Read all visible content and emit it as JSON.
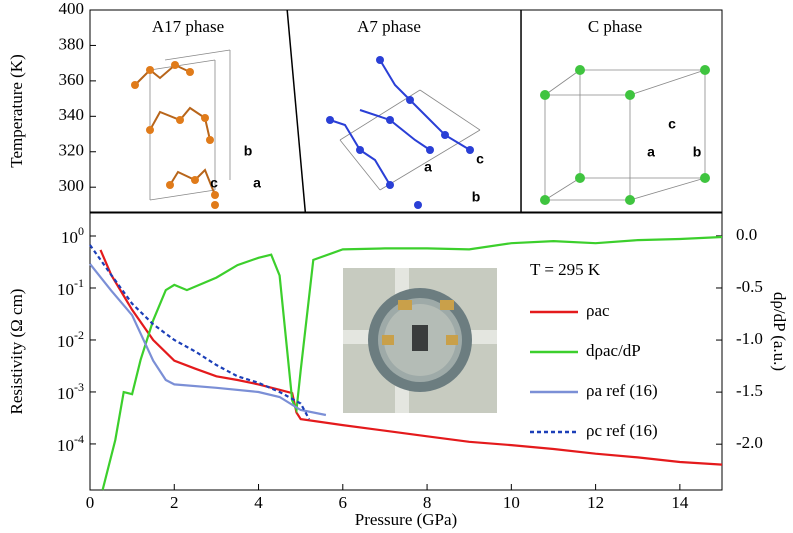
{
  "chart_data": [
    {
      "type": "phase-map",
      "ylabel": "Temperature (K)",
      "xlim": [
        0,
        15
      ],
      "ylim": [
        286,
        400
      ],
      "yticks": [
        300,
        320,
        340,
        360,
        380,
        400
      ],
      "boundaries": [
        [
          4.68,
          5.11
        ],
        [
          10.23,
          10.23
        ]
      ],
      "regions": [
        {
          "label": "A17 phase",
          "axes": [
            "b",
            "c",
            "a"
          ],
          "color": "#e07b1a"
        },
        {
          "label": "A7 phase",
          "axes": [
            "a",
            "c",
            "b"
          ],
          "color": "#2a3fd6"
        },
        {
          "label": "C phase",
          "axes": [
            "c",
            "a",
            "b"
          ],
          "color": "#3fc43f"
        }
      ]
    },
    {
      "type": "line",
      "xlabel": "Pressure (GPa)",
      "ylabel": "Resistivity (Ω cm)",
      "y2label": "dρ/dP (a.u.)",
      "annotation": "T = 295 K",
      "yscale": "log",
      "xlim": [
        0,
        15
      ],
      "xticks": [
        0,
        2,
        4,
        6,
        8,
        10,
        12,
        14
      ],
      "ylim": [
        1.3e-05,
        2.77
      ],
      "yticks": [
        {
          "value": 1,
          "label": "10^0"
        },
        {
          "value": 0.1,
          "label": "10^-1"
        },
        {
          "value": 0.01,
          "label": "10^-2"
        },
        {
          "value": 0.001,
          "label": "10^-3"
        },
        {
          "value": 0.0001,
          "label": "10^-4"
        }
      ],
      "y2lim": [
        -2.44,
        0.22
      ],
      "y2ticks": [
        {
          "value": 0,
          "label": "0.0"
        },
        -0.5,
        {
          "value": -1,
          "label": "-1.0"
        },
        -1.5,
        {
          "value": -2,
          "label": "-2.0"
        }
      ],
      "series": [
        {
          "name": "ρac",
          "color": "#e41a1c",
          "dash": false,
          "x": [
            0.25,
            0.5,
            1,
            1.5,
            2,
            2.5,
            3,
            3.5,
            4,
            4.5,
            4.8,
            4.9,
            5,
            6,
            7,
            8,
            9,
            10,
            11,
            12,
            13,
            14,
            15
          ],
          "values": [
            0.54,
            0.18,
            0.038,
            0.01,
            0.004,
            0.0028,
            0.002,
            0.0017,
            0.0014,
            0.0011,
            0.00095,
            0.0004,
            0.0003,
            0.00023,
            0.00018,
            0.00014,
            0.00011,
            9.5e-05,
            8e-05,
            6.5e-05,
            5.5e-05,
            4.5e-05,
            4e-05
          ]
        },
        {
          "name": "dρac/dP",
          "color": "#3ccf2c",
          "dash": false,
          "axis": "y2",
          "x": [
            0.3,
            0.6,
            0.8,
            1,
            1.2,
            1.5,
            1.8,
            2,
            2.3,
            3,
            3.5,
            4,
            4.3,
            4.5,
            4.8,
            4.9,
            5,
            5.3,
            6,
            7,
            8,
            9,
            10,
            11,
            12,
            13,
            14,
            15
          ],
          "values": [
            -2.44,
            -1.96,
            -1.5,
            -1.52,
            -1.19,
            -0.81,
            -0.52,
            -0.47,
            -0.52,
            -0.4,
            -0.28,
            -0.21,
            -0.18,
            -0.38,
            -1.58,
            -1.67,
            -1.29,
            -0.23,
            -0.13,
            -0.12,
            -0.12,
            -0.13,
            -0.07,
            -0.05,
            -0.07,
            -0.04,
            -0.03,
            -0.01
          ]
        },
        {
          "name": "ρa ref (16)",
          "color": "#7b8fd6",
          "dash": false,
          "x": [
            0,
            0.5,
            1,
            1.5,
            1.8,
            2,
            3,
            4,
            4.5,
            5,
            5.6
          ],
          "values": [
            0.29,
            0.09,
            0.03,
            0.004,
            0.0017,
            0.0014,
            0.0012,
            0.001,
            0.0008,
            0.00045,
            0.00036
          ]
        },
        {
          "name": "ρc  ref (16)",
          "color": "#1c3fb8",
          "dash": true,
          "x": [
            0,
            0.5,
            1,
            1.5,
            2,
            2.5,
            3,
            3.5,
            4,
            4.5,
            5,
            5.2
          ],
          "values": [
            0.67,
            0.18,
            0.05,
            0.02,
            0.01,
            0.006,
            0.0033,
            0.002,
            0.0015,
            0.001,
            0.0006,
            0.0003
          ]
        }
      ]
    }
  ]
}
